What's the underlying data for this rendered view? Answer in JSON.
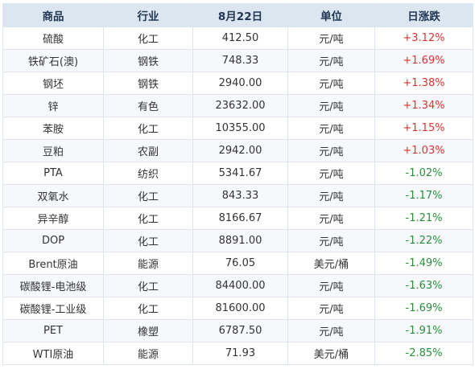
{
  "headers": [
    "商品",
    "行业",
    "8月22日",
    "单位",
    "日涨跌"
  ],
  "colors": {
    "header_bg": "#dbe6f1",
    "up": "#e0322f",
    "down": "#27913a",
    "border": "#dfe5ee"
  },
  "rows": [
    {
      "name": "硫酸",
      "industry": "化工",
      "price": "412.50",
      "unit": "元/吨",
      "change": "+3.12%",
      "dir": "up"
    },
    {
      "name": "铁矿石(澳)",
      "industry": "钢铁",
      "price": "748.33",
      "unit": "元/吨",
      "change": "+1.69%",
      "dir": "up"
    },
    {
      "name": "钢坯",
      "industry": "钢铁",
      "price": "2940.00",
      "unit": "元/吨",
      "change": "+1.38%",
      "dir": "up"
    },
    {
      "name": "锌",
      "industry": "有色",
      "price": "23632.00",
      "unit": "元/吨",
      "change": "+1.34%",
      "dir": "up"
    },
    {
      "name": "苯胺",
      "industry": "化工",
      "price": "10355.00",
      "unit": "元/吨",
      "change": "+1.15%",
      "dir": "up"
    },
    {
      "name": "豆粕",
      "industry": "农副",
      "price": "2942.00",
      "unit": "元/吨",
      "change": "+1.03%",
      "dir": "up"
    },
    {
      "name": "PTA",
      "industry": "纺织",
      "price": "5341.67",
      "unit": "元/吨",
      "change": "-1.02%",
      "dir": "down"
    },
    {
      "name": "双氧水",
      "industry": "化工",
      "price": "843.33",
      "unit": "元/吨",
      "change": "-1.17%",
      "dir": "down"
    },
    {
      "name": "异辛醇",
      "industry": "化工",
      "price": "8166.67",
      "unit": "元/吨",
      "change": "-1.21%",
      "dir": "down"
    },
    {
      "name": "DOP",
      "industry": "化工",
      "price": "8891.00",
      "unit": "元/吨",
      "change": "-1.22%",
      "dir": "down"
    },
    {
      "name": "Brent原油",
      "industry": "能源",
      "price": "76.05",
      "unit": "美元/桶",
      "change": "-1.49%",
      "dir": "down"
    },
    {
      "name": "碳酸锂-电池级",
      "industry": "化工",
      "price": "84400.00",
      "unit": "元/吨",
      "change": "-1.63%",
      "dir": "down"
    },
    {
      "name": "碳酸锂-工业级",
      "industry": "化工",
      "price": "81600.00",
      "unit": "元/吨",
      "change": "-1.69%",
      "dir": "down"
    },
    {
      "name": "PET",
      "industry": "橡塑",
      "price": "6787.50",
      "unit": "元/吨",
      "change": "-1.91%",
      "dir": "down"
    },
    {
      "name": "WTI原油",
      "industry": "能源",
      "price": "71.93",
      "unit": "美元/桶",
      "change": "-2.85%",
      "dir": "down"
    }
  ]
}
